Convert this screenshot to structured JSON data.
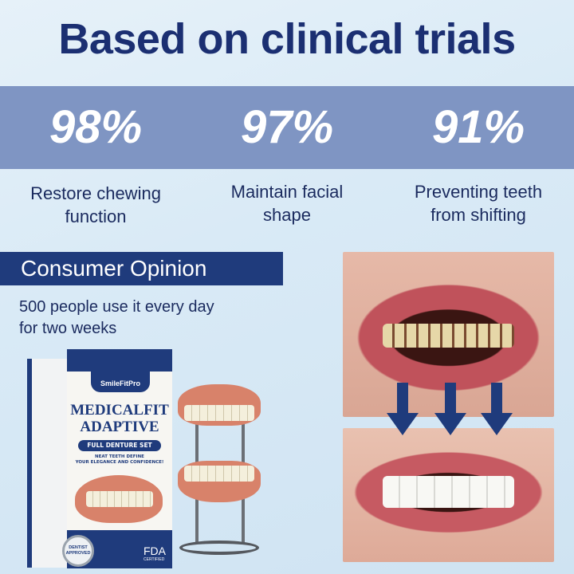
{
  "title": "Based on clinical trials",
  "stats": [
    {
      "value": "98%",
      "label_line1": "Restore chewing",
      "label_line2": "function"
    },
    {
      "value": "97%",
      "label_line1": "Maintain facial",
      "label_line2": "shape"
    },
    {
      "value": "91%",
      "label_line1": "Preventing teeth",
      "label_line2": "from shifting"
    }
  ],
  "opinion": {
    "heading": "Consumer Opinion",
    "line1": "500 people use it every day",
    "line2": "for two weeks"
  },
  "product": {
    "brand": "SmileFitPro",
    "name_line1": "MEDICALFIT",
    "name_line2": "ADAPTIVE",
    "pill": "FULL DENTURE SET",
    "tagline_line1": "NEAT TEETH DEFINE",
    "tagline_line2": "YOUR ELEGANCE AND CONFIDENCE!",
    "fda": "FDA",
    "fda_sub": "CERTIFIED",
    "badge": "DENTIST APPROVED"
  },
  "colors": {
    "title": "#1b2f72",
    "band": "#7f95c3",
    "banner": "#1f3b7c",
    "arrow": "#1f3b7c"
  }
}
